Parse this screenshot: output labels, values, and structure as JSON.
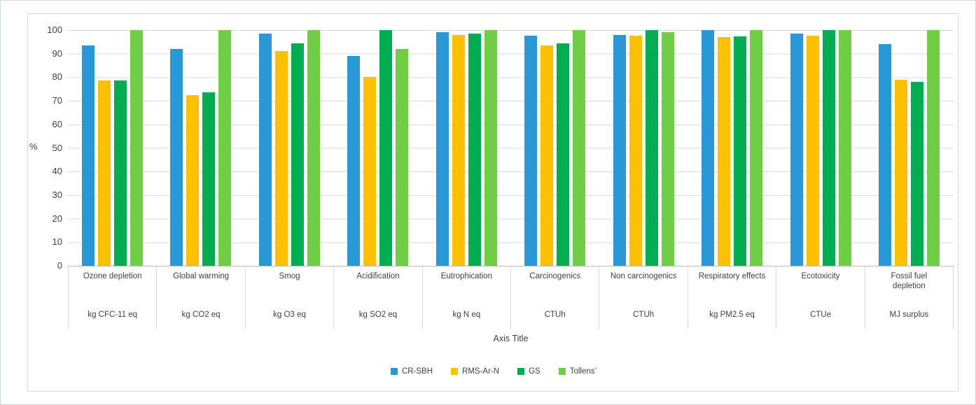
{
  "chart_data": {
    "type": "bar",
    "title": "",
    "ylabel": "%",
    "xlabel": "Axis Title",
    "ylim": [
      0,
      100
    ],
    "yticks": [
      100,
      90,
      80,
      70,
      60,
      50,
      40,
      30,
      20,
      10,
      0
    ],
    "grid": true,
    "legend_position": "bottom",
    "categories": [
      {
        "name": "Ozone depletion",
        "unit": "kg CFC-11 eq"
      },
      {
        "name": "Global warming",
        "unit": "kg CO2 eq"
      },
      {
        "name": "Smog",
        "unit": "kg O3 eq"
      },
      {
        "name": "Acidification",
        "unit": "kg SO2 eq"
      },
      {
        "name": "Eutrophication",
        "unit": "kg N eq"
      },
      {
        "name": "Carcinogenics",
        "unit": "CTUh"
      },
      {
        "name": "Non carcinogenics",
        "unit": "CTUh"
      },
      {
        "name": "Respiratory effects",
        "unit": "kg PM2.5 eq"
      },
      {
        "name": "Ecotoxicity",
        "unit": "CTUe"
      },
      {
        "name": "Fossil fuel depletion",
        "unit": "MJ surplus"
      }
    ],
    "series": [
      {
        "name": "CR-SBH",
        "color": "#2899D6",
        "values": [
          93.5,
          92,
          98.5,
          89,
          99,
          97.5,
          98,
          100,
          98.5,
          94
        ]
      },
      {
        "name": "RMS-Ar-N",
        "color": "#FFC000",
        "values": [
          78.5,
          72.5,
          91,
          80,
          98,
          93.5,
          97.7,
          97,
          97.5,
          79
        ]
      },
      {
        "name": "GS",
        "color": "#00AD50",
        "values": [
          78.5,
          73.5,
          94.5,
          100,
          98.5,
          94.5,
          100,
          97.3,
          100,
          78
        ]
      },
      {
        "name": "Tollens’",
        "color": "#70CE45",
        "values": [
          100,
          100,
          100,
          92,
          100,
          100,
          99,
          100,
          100,
          100
        ]
      }
    ]
  },
  "colors": {
    "gridline": "#d9d9d9",
    "axis_text": "#404040",
    "frame_border": "#d9d9d9"
  }
}
